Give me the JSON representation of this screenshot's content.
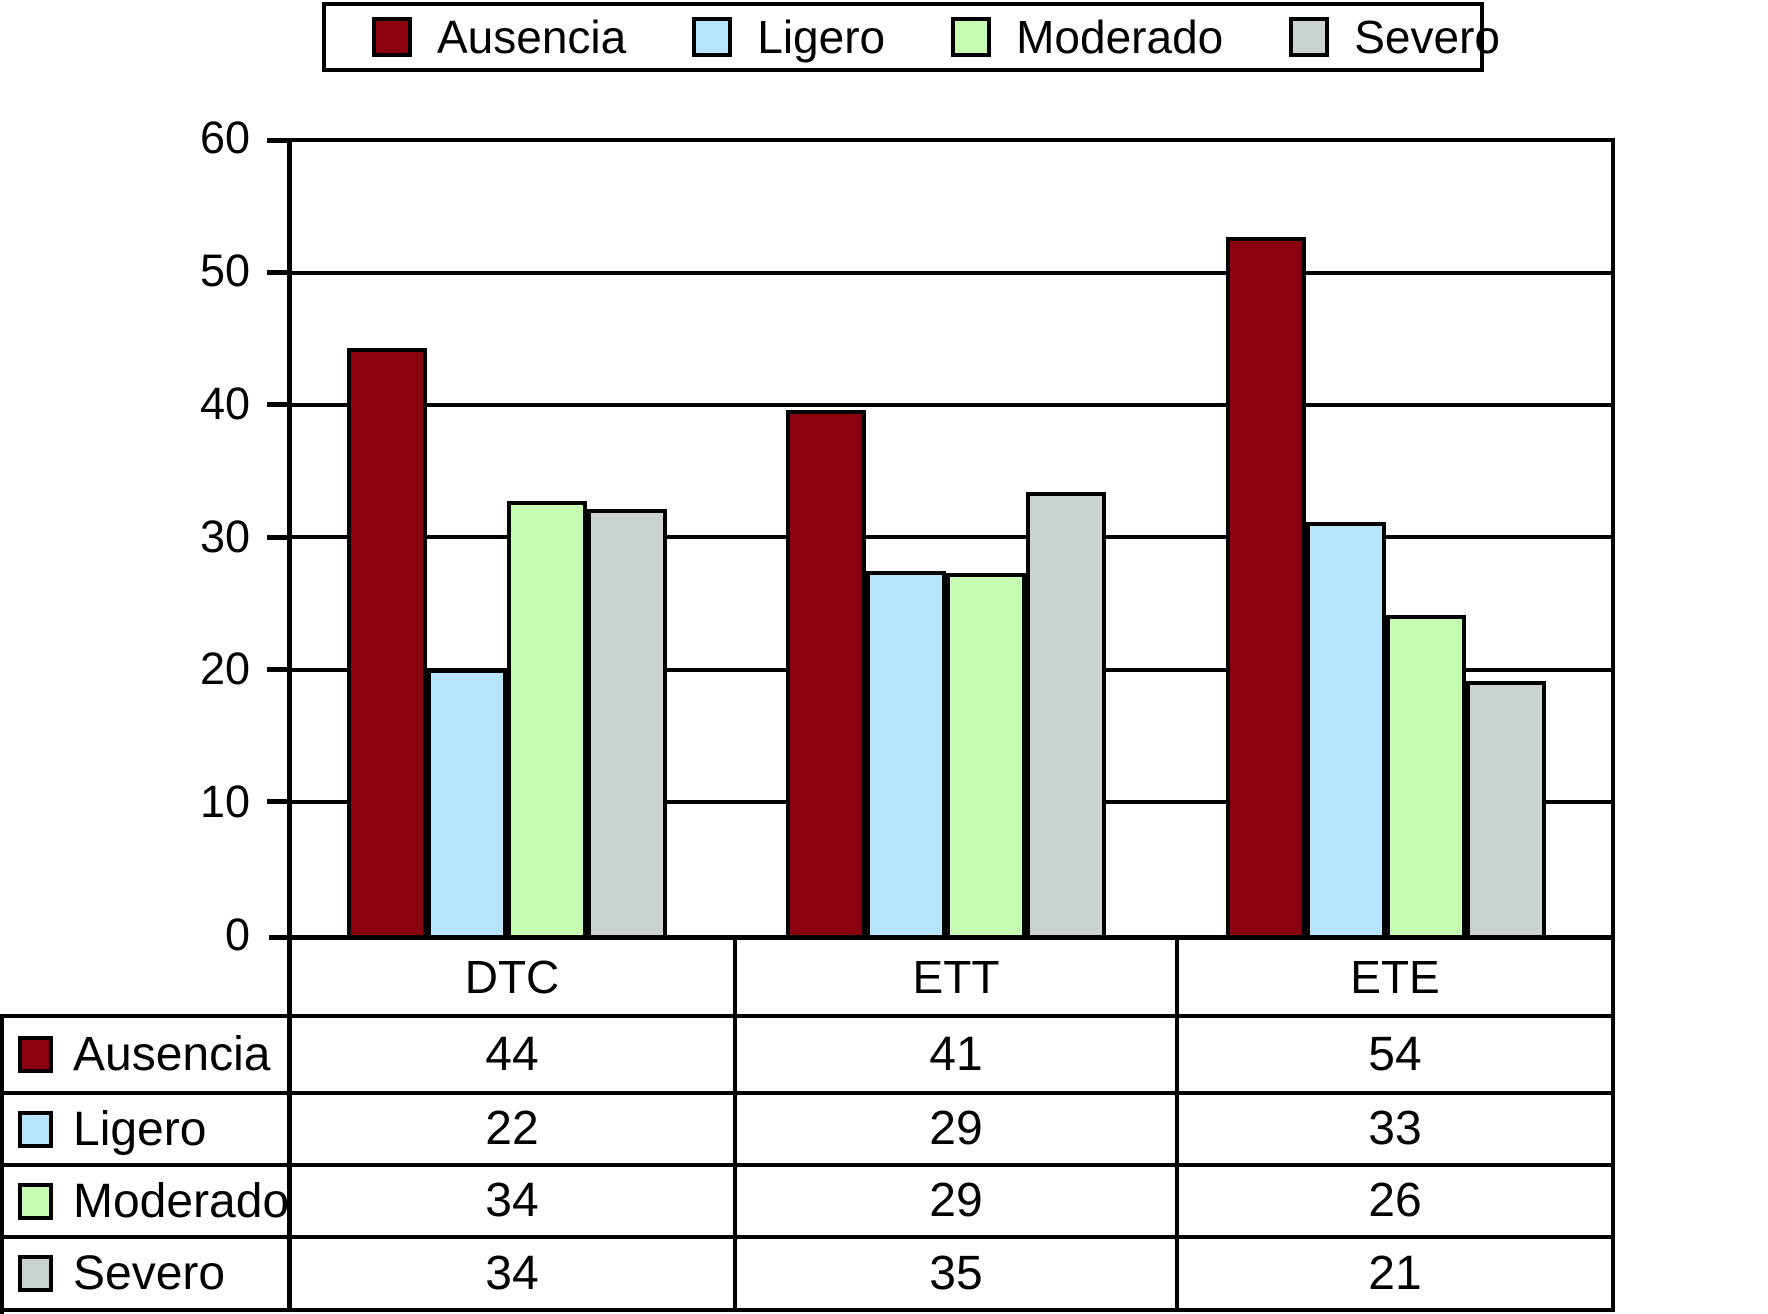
{
  "chart_data": {
    "type": "bar",
    "title": "",
    "categories": [
      "DTC",
      "ETT",
      "ETE"
    ],
    "series": [
      {
        "name": "Ausencia",
        "color": "#8B010D",
        "values": [
          44,
          41,
          54
        ]
      },
      {
        "name": "Ligero",
        "color": "#B5E5FB",
        "values": [
          22,
          29,
          33
        ]
      },
      {
        "name": "Moderado",
        "color": "#C5FCB2",
        "values": [
          34,
          29,
          26
        ]
      },
      {
        "name": "Severo",
        "color": "#CAD3D0",
        "values": [
          34,
          35,
          21
        ]
      }
    ],
    "y_axis": {
      "min": 0,
      "max": 60,
      "tick_interval": 10,
      "ticks": [
        60,
        50,
        40,
        30,
        20,
        10,
        0
      ]
    },
    "xlabel": "",
    "ylabel": "",
    "legend_position": "top",
    "grid": "horizontal",
    "data_table_shown": true,
    "bar_rendered_values": {
      "note": "heights the bars are actually drawn at (read from pixels); they differ slightly from the table values",
      "DTC": [
        44.3,
        20.2,
        32.8,
        32.2
      ],
      "ETT": [
        39.6,
        27.6,
        27.4,
        33.5
      ],
      "ETE": [
        52.6,
        31.2,
        24.3,
        19.3
      ]
    }
  }
}
